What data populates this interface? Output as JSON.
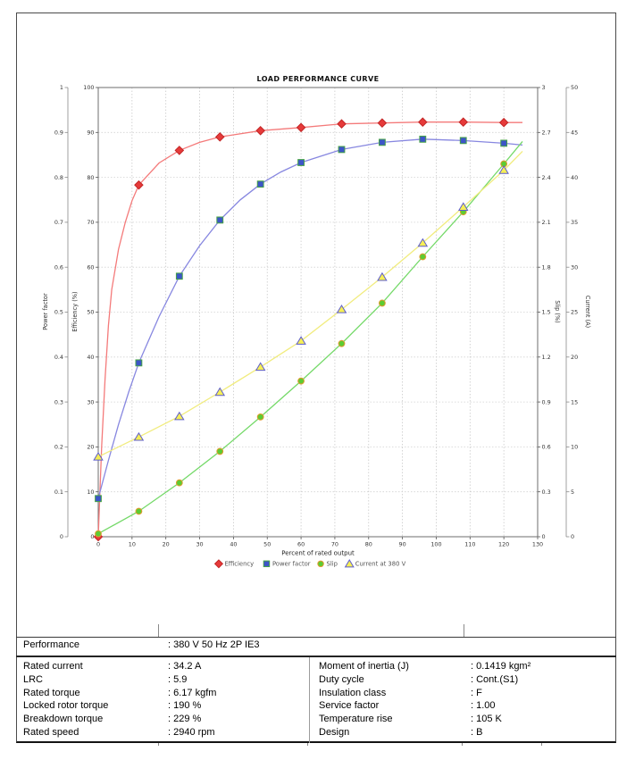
{
  "chart_data": {
    "type": "line",
    "title": "LOAD PERFORMANCE CURVE",
    "xlabel": "Percent of rated output",
    "xlim": [
      0,
      130
    ],
    "x_ticks": [
      "0",
      "10",
      "20",
      "30",
      "40",
      "50",
      "60",
      "70",
      "80",
      "90",
      "100",
      "110",
      "120",
      "130"
    ],
    "grid": true,
    "legend_position": "bottom",
    "axes": [
      {
        "id": "power_factor",
        "title": "Power factor",
        "side": "left-outer",
        "range": [
          0,
          1
        ],
        "tick_labels": [
          "0",
          "0.1",
          "0.2",
          "0.3",
          "0.4",
          "0.5",
          "0.6",
          "0.7",
          "0.8",
          "0.9",
          "1"
        ]
      },
      {
        "id": "efficiency",
        "title": "Efficiency (%)",
        "side": "left",
        "range": [
          0,
          100
        ],
        "tick_labels": [
          "0",
          "10",
          "20",
          "30",
          "40",
          "50",
          "60",
          "70",
          "80",
          "90",
          "100"
        ]
      },
      {
        "id": "slip",
        "title": "Slip (%)",
        "side": "right",
        "range": [
          0,
          3
        ],
        "tick_labels": [
          "0",
          "0.3",
          "0.6",
          "0.9",
          "1.2",
          "1.5",
          "1.8",
          "2.1",
          "2.4",
          "2.7",
          "3"
        ]
      },
      {
        "id": "current",
        "title": "Current (A)",
        "side": "right-outer",
        "range": [
          0,
          50
        ],
        "tick_labels": [
          "0",
          "5",
          "10",
          "15",
          "20",
          "25",
          "30",
          "35",
          "40",
          "45",
          "50"
        ]
      }
    ],
    "x": [
      0,
      12,
      24,
      36,
      48,
      60,
      72,
      84,
      96,
      108,
      120
    ],
    "series": [
      {
        "name": "Efficiency",
        "axis": "efficiency",
        "marker": "diamond",
        "line_color": "#f47a7a",
        "marker_fill": "#e63a3a",
        "marker_edge": "#c22525",
        "values": [
          0,
          78.3,
          86,
          89,
          90.4,
          91.1,
          91.9,
          92.1,
          92.3,
          92.3,
          92.2
        ],
        "curve_x": [
          0,
          1,
          2,
          3,
          4,
          6,
          8,
          10,
          12,
          18,
          24,
          30,
          36,
          48,
          60,
          72,
          84,
          96,
          108,
          120,
          125.5
        ],
        "curve_y": [
          0,
          20,
          35,
          47,
          55,
          64,
          70,
          74.8,
          78.3,
          83.2,
          86,
          87.8,
          89,
          90.4,
          91.1,
          91.9,
          92.1,
          92.3,
          92.3,
          92.2,
          92.2
        ]
      },
      {
        "name": "Power factor",
        "axis": "power_factor",
        "marker": "square",
        "line_color": "#8787e0",
        "marker_fill": "#3c55c8",
        "marker_edge": "#46a346",
        "values": [
          0.085,
          0.387,
          0.58,
          0.705,
          0.785,
          0.833,
          0.862,
          0.878,
          0.885,
          0.882,
          0.876
        ],
        "curve_x": [
          0,
          3,
          6,
          9,
          12,
          18,
          24,
          30,
          36,
          42,
          48,
          54,
          60,
          72,
          84,
          96,
          108,
          120,
          125.5
        ],
        "curve_y": [
          0.085,
          0.17,
          0.25,
          0.322,
          0.387,
          0.49,
          0.58,
          0.648,
          0.705,
          0.75,
          0.785,
          0.812,
          0.833,
          0.862,
          0.878,
          0.885,
          0.882,
          0.876,
          0.872
        ]
      },
      {
        "name": "Slip",
        "axis": "slip",
        "marker": "circle",
        "line_color": "#74d968",
        "marker_fill": "#5ccc33",
        "marker_edge": "#e09b2d",
        "values": [
          0.02,
          0.17,
          0.36,
          0.57,
          0.8,
          1.04,
          1.29,
          1.56,
          1.87,
          2.17,
          2.49
        ],
        "curve_x": [
          0,
          12,
          24,
          36,
          48,
          60,
          72,
          84,
          96,
          108,
          120,
          125.5
        ],
        "curve_y": [
          0.02,
          0.17,
          0.36,
          0.57,
          0.8,
          1.04,
          1.29,
          1.56,
          1.87,
          2.17,
          2.49,
          2.64
        ]
      },
      {
        "name": "Current at 380 V",
        "axis": "current",
        "marker": "triangle",
        "line_color": "#f1ec7e",
        "marker_fill": "#f6ef55",
        "marker_edge": "#5d5dcd",
        "values": [
          8.9,
          11.1,
          13.4,
          16.1,
          18.9,
          21.8,
          25.3,
          28.9,
          32.7,
          36.7,
          40.8
        ],
        "curve_x": [
          0,
          12,
          24,
          36,
          48,
          60,
          72,
          84,
          96,
          108,
          120,
          125.5
        ],
        "curve_y": [
          8.9,
          11.1,
          13.4,
          16.1,
          18.9,
          21.8,
          25.3,
          28.9,
          32.7,
          36.7,
          40.8,
          42.9
        ]
      }
    ]
  },
  "info_table": {
    "performance": {
      "label": "Performance",
      "value": ": 380 V 50 Hz 2P IE3"
    },
    "left_rows": [
      {
        "label": "Rated current",
        "value": ": 34.2 A"
      },
      {
        "label": "LRC",
        "value": ": 5.9"
      },
      {
        "label": "Rated torque",
        "value": ": 6.17 kgfm"
      },
      {
        "label": "Locked rotor torque",
        "value": ": 190 %"
      },
      {
        "label": "Breakdown torque",
        "value": ": 229 %"
      },
      {
        "label": "Rated speed",
        "value": ": 2940 rpm"
      }
    ],
    "right_rows": [
      {
        "label": "Moment of inertia (J)",
        "value": ": 0.1419 kgm²"
      },
      {
        "label": "Duty cycle",
        "value": ": Cont.(S1)"
      },
      {
        "label": "Insulation class",
        "value": ": F"
      },
      {
        "label": "Service factor",
        "value": ": 1.00"
      },
      {
        "label": "Temperature rise",
        "value": ": 105 K"
      },
      {
        "label": "Design",
        "value": ": B"
      }
    ]
  }
}
